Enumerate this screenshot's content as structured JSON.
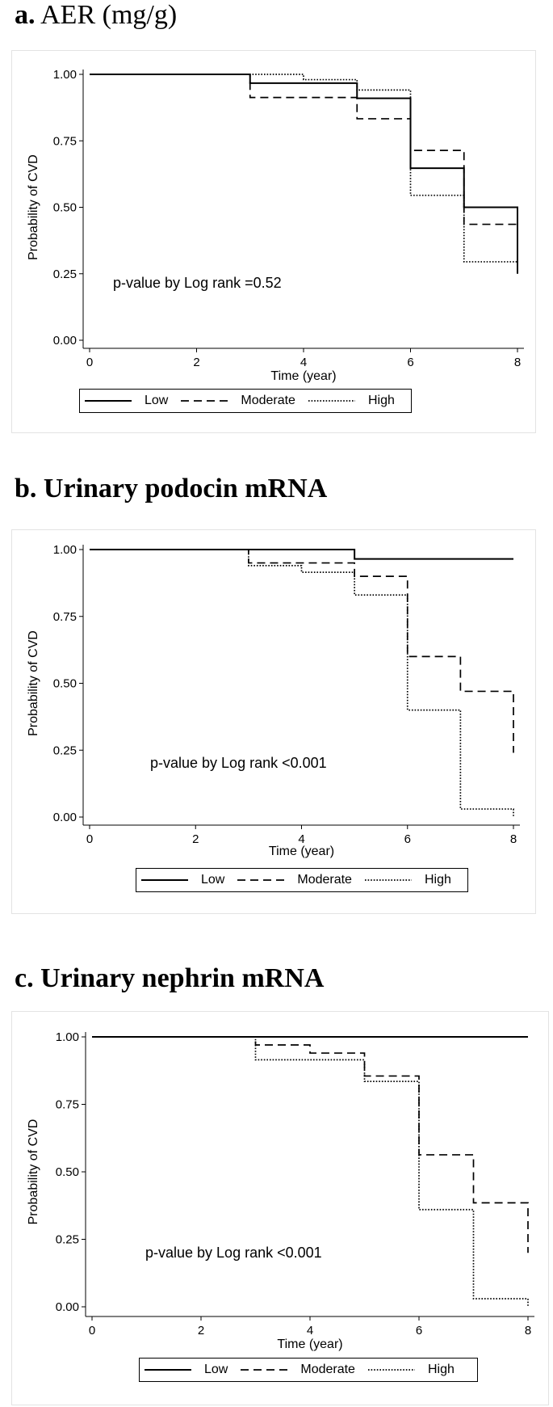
{
  "chart_data": [
    {
      "type": "line",
      "panel_letter": "a.",
      "title": "AER (mg/g)",
      "title_bold": false,
      "xlabel": "Time (year)",
      "ylabel": "Probability of CVD",
      "xlim": [
        0,
        8
      ],
      "ylim": [
        0,
        1
      ],
      "xticks": [
        "0",
        "2",
        "4",
        "6",
        "8"
      ],
      "yticks": [
        "0.00",
        "0.25",
        "0.50",
        "0.75",
        "1.00"
      ],
      "annotation": "p-value by Log rank =0.52",
      "legend": [
        "Low",
        "Moderate",
        "High"
      ],
      "grid": false,
      "series": [
        {
          "name": "Low",
          "style": "solid",
          "x": [
            0,
            3,
            5,
            6,
            7,
            8,
            8
          ],
          "y": [
            1.0,
            0.967,
            0.91,
            0.647,
            0.5,
            0.5,
            0.25
          ]
        },
        {
          "name": "Moderate",
          "style": "dashed",
          "x": [
            0,
            3,
            5,
            6,
            7,
            8
          ],
          "y": [
            1.0,
            0.913,
            0.833,
            0.714,
            0.436,
            0.436
          ]
        },
        {
          "name": "High",
          "style": "dotted",
          "x": [
            0,
            4,
            5,
            6,
            7,
            8
          ],
          "y": [
            1.0,
            0.98,
            0.941,
            0.545,
            0.295,
            0.295
          ]
        }
      ]
    },
    {
      "type": "line",
      "panel_letter": "b.",
      "title": "Urinary podocin mRNA",
      "title_bold": true,
      "xlabel": "Time (year)",
      "ylabel": "Probability of CVD",
      "xlim": [
        0,
        8
      ],
      "ylim": [
        0,
        1
      ],
      "xticks": [
        "0",
        "2",
        "4",
        "6",
        "8"
      ],
      "yticks": [
        "0.00",
        "0.25",
        "0.50",
        "0.75",
        "1.00"
      ],
      "annotation": "p-value by Log rank <0.001",
      "legend": [
        "Low",
        "Moderate",
        "High"
      ],
      "grid": false,
      "series": [
        {
          "name": "Low",
          "style": "solid",
          "x": [
            0,
            5,
            8
          ],
          "y": [
            1.0,
            0.965,
            0.965
          ]
        },
        {
          "name": "Moderate",
          "style": "dashed",
          "x": [
            0,
            3,
            5,
            6,
            7,
            8,
            8
          ],
          "y": [
            1.0,
            0.95,
            0.9,
            0.6,
            0.47,
            0.47,
            0.24
          ]
        },
        {
          "name": "High",
          "style": "dotted",
          "x": [
            0,
            3,
            4,
            5,
            6,
            7,
            8,
            8
          ],
          "y": [
            1.0,
            0.94,
            0.915,
            0.83,
            0.4,
            0.03,
            0.03,
            0.0
          ]
        }
      ]
    },
    {
      "type": "line",
      "panel_letter": "c.",
      "title": "Urinary nephrin mRNA",
      "title_bold": true,
      "xlabel": "Time (year)",
      "ylabel": "Probability of CVD",
      "xlim": [
        0,
        8
      ],
      "ylim": [
        0,
        1
      ],
      "xticks": [
        "0",
        "2",
        "4",
        "6",
        "8"
      ],
      "yticks": [
        "0.00",
        "0.25",
        "0.50",
        "0.75",
        "1.00"
      ],
      "annotation": "p-value by Log rank <0.001",
      "legend": [
        "Low",
        "Moderate",
        "High"
      ],
      "grid": false,
      "series": [
        {
          "name": "Low",
          "style": "solid",
          "x": [
            0,
            8
          ],
          "y": [
            1.0,
            1.0
          ]
        },
        {
          "name": "Moderate",
          "style": "dashed",
          "x": [
            0,
            3,
            4,
            5,
            6,
            7,
            8,
            8
          ],
          "y": [
            1.0,
            0.97,
            0.94,
            0.855,
            0.563,
            0.385,
            0.385,
            0.2
          ]
        },
        {
          "name": "High",
          "style": "dotted",
          "x": [
            0,
            3,
            5,
            6,
            7,
            8,
            8
          ],
          "y": [
            1.0,
            0.915,
            0.835,
            0.36,
            0.03,
            0.03,
            0.0
          ]
        }
      ]
    }
  ]
}
